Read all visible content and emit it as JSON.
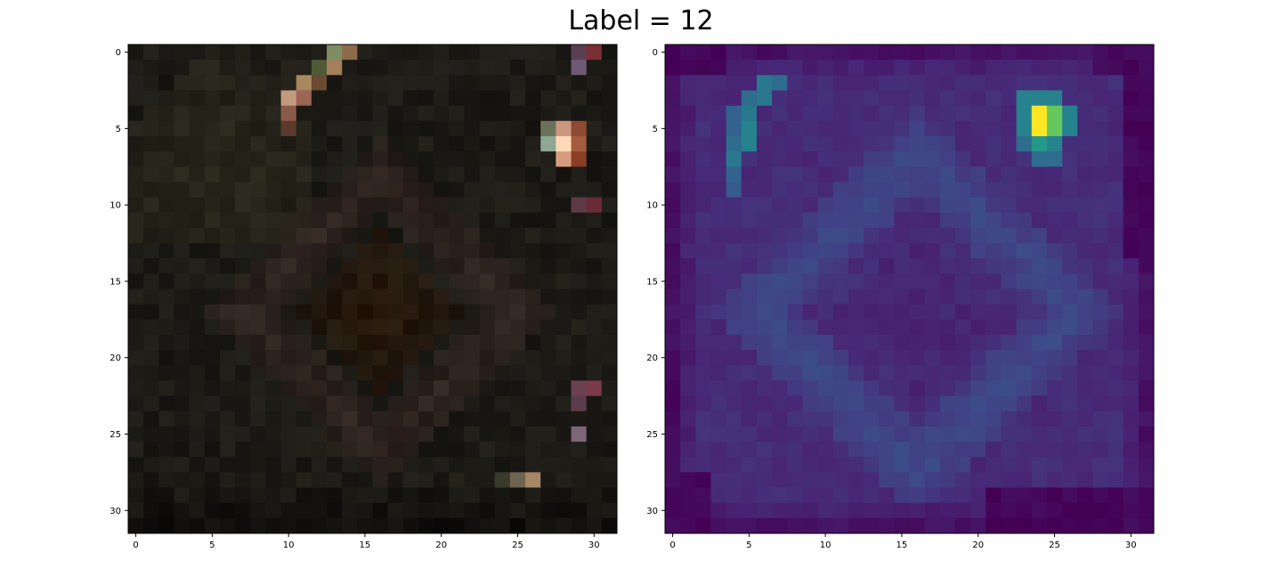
{
  "title": "Label = 12",
  "chart_data": [
    {
      "type": "heatmap",
      "panel": "left",
      "description": "32x32 RGB image (dark, mostly brown/black), shown with imshow",
      "xlim": [
        -0.5,
        31.5
      ],
      "ylim": [
        31.5,
        -0.5
      ],
      "xticks": [
        0,
        5,
        10,
        15,
        20,
        25,
        30
      ],
      "yticks": [
        0,
        5,
        10,
        15,
        20,
        25,
        30
      ],
      "palette": {
        "base": "#1c1a15",
        "ring": "#302421",
        "center": "#261609",
        "greenish": "#3a3822",
        "highlights": [
          {
            "r": 5,
            "c": 28,
            "color": "#c9977c"
          },
          {
            "r": 6,
            "c": 28,
            "color": "#ffd8b8"
          },
          {
            "r": 6,
            "c": 27,
            "color": "#8ea692"
          },
          {
            "r": 7,
            "c": 28,
            "color": "#d79c7f"
          },
          {
            "r": 6,
            "c": 29,
            "color": "#a35c3e"
          },
          {
            "r": 5,
            "c": 29,
            "color": "#8e4a32"
          },
          {
            "r": 7,
            "c": 29,
            "color": "#8a3e25"
          },
          {
            "r": 5,
            "c": 27,
            "color": "#6a725a"
          },
          {
            "r": 0,
            "c": 29,
            "color": "#5a3f52"
          },
          {
            "r": 1,
            "c": 29,
            "color": "#6e5a76"
          },
          {
            "r": 0,
            "c": 30,
            "color": "#7a2e34"
          },
          {
            "r": 0,
            "c": 13,
            "color": "#7e8d62"
          },
          {
            "r": 0,
            "c": 14,
            "color": "#8c6a4a"
          },
          {
            "r": 1,
            "c": 12,
            "color": "#4f5a36"
          },
          {
            "r": 1,
            "c": 13,
            "color": "#a3805c"
          },
          {
            "r": 2,
            "c": 11,
            "color": "#a8865f"
          },
          {
            "r": 2,
            "c": 12,
            "color": "#6a4a30"
          },
          {
            "r": 3,
            "c": 10,
            "color": "#c49a7e"
          },
          {
            "r": 3,
            "c": 11,
            "color": "#9a6554"
          },
          {
            "r": 4,
            "c": 10,
            "color": "#8a5a48"
          },
          {
            "r": 5,
            "c": 10,
            "color": "#5a3a2e"
          },
          {
            "r": 10,
            "c": 29,
            "color": "#5e3a46"
          },
          {
            "r": 10,
            "c": 30,
            "color": "#6a2a36"
          },
          {
            "r": 22,
            "c": 29,
            "color": "#6b4151"
          },
          {
            "r": 22,
            "c": 30,
            "color": "#7a3a4a"
          },
          {
            "r": 23,
            "c": 29,
            "color": "#5c3c4c"
          },
          {
            "r": 25,
            "c": 29,
            "color": "#7d6675"
          },
          {
            "r": 28,
            "c": 25,
            "color": "#6f6450"
          },
          {
            "r": 28,
            "c": 26,
            "color": "#a58666"
          },
          {
            "r": 28,
            "c": 24,
            "color": "#3a3a2a"
          }
        ]
      }
    },
    {
      "type": "heatmap",
      "panel": "right",
      "description": "32x32 saliency map rendered with viridis colormap",
      "colormap": "viridis",
      "xlim": [
        -0.5,
        31.5
      ],
      "ylim": [
        31.5,
        -0.5
      ],
      "xticks": [
        0,
        5,
        10,
        15,
        20,
        25,
        30
      ],
      "yticks": [
        0,
        5,
        10,
        15,
        20,
        25,
        30
      ],
      "hotspots": [
        {
          "r": 4,
          "c": 24,
          "v": 1.0
        },
        {
          "r": 5,
          "c": 24,
          "v": 1.0
        },
        {
          "r": 4,
          "c": 25,
          "v": 0.82
        },
        {
          "r": 5,
          "c": 25,
          "v": 0.82
        },
        {
          "r": 3,
          "c": 24,
          "v": 0.55
        },
        {
          "r": 3,
          "c": 23,
          "v": 0.55
        },
        {
          "r": 3,
          "c": 25,
          "v": 0.55
        },
        {
          "r": 4,
          "c": 23,
          "v": 0.55
        },
        {
          "r": 5,
          "c": 23,
          "v": 0.55
        },
        {
          "r": 4,
          "c": 26,
          "v": 0.55
        },
        {
          "r": 5,
          "c": 26,
          "v": 0.55
        },
        {
          "r": 6,
          "c": 24,
          "v": 0.65
        },
        {
          "r": 6,
          "c": 25,
          "v": 0.55
        },
        {
          "r": 6,
          "c": 23,
          "v": 0.45
        },
        {
          "r": 7,
          "c": 24,
          "v": 0.45
        },
        {
          "r": 7,
          "c": 25,
          "v": 0.45
        },
        {
          "r": 2,
          "c": 6,
          "v": 0.5
        },
        {
          "r": 2,
          "c": 7,
          "v": 0.45
        },
        {
          "r": 3,
          "c": 5,
          "v": 0.45
        },
        {
          "r": 3,
          "c": 6,
          "v": 0.5
        },
        {
          "r": 4,
          "c": 5,
          "v": 0.5
        },
        {
          "r": 5,
          "c": 5,
          "v": 0.55
        },
        {
          "r": 6,
          "c": 5,
          "v": 0.55
        },
        {
          "r": 4,
          "c": 4,
          "v": 0.4
        },
        {
          "r": 5,
          "c": 4,
          "v": 0.4
        },
        {
          "r": 7,
          "c": 4,
          "v": 0.5
        },
        {
          "r": 6,
          "c": 4,
          "v": 0.45
        },
        {
          "r": 8,
          "c": 4,
          "v": 0.4
        },
        {
          "r": 9,
          "c": 4,
          "v": 0.36
        }
      ]
    }
  ]
}
